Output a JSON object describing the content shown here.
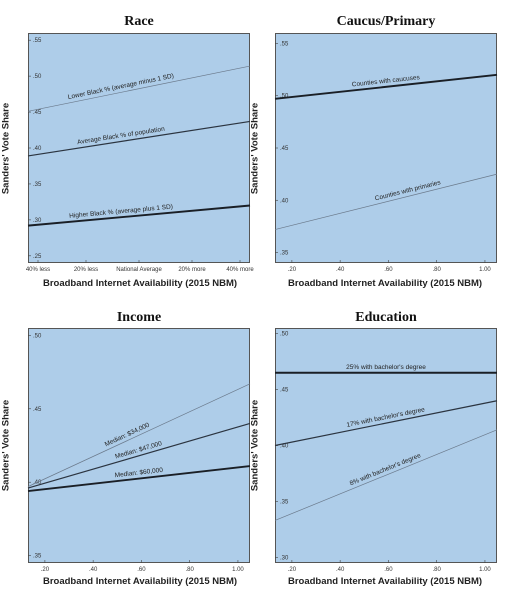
{
  "chart_data": [
    {
      "type": "line",
      "title": "Race",
      "xlabel": "Broadband Internet Availability (2015 NBM)",
      "ylabel": "Sanders' Vote Share",
      "xlim": [
        0,
        4
      ],
      "ylim": [
        0.24,
        0.56
      ],
      "x_ticks": [
        "40% less",
        "20% less",
        "National Average",
        "20% more",
        "40% more"
      ],
      "y_ticks": [
        ".25",
        ".30",
        ".35",
        ".40",
        ".45",
        ".50",
        ".55"
      ],
      "y_tick_values": [
        0.25,
        0.3,
        0.35,
        0.4,
        0.45,
        0.5,
        0.55
      ],
      "grid": false,
      "series": [
        {
          "name": "Lower Black % (average minus 1 SD)",
          "x": [
            0,
            4
          ],
          "y": [
            0.451,
            0.514
          ],
          "weight": "thin"
        },
        {
          "name": "Average Black % of population",
          "x": [
            0,
            4
          ],
          "y": [
            0.389,
            0.437
          ],
          "weight": "medium"
        },
        {
          "name": "Higher Black % (average plus 1 SD)",
          "x": [
            0,
            4
          ],
          "y": [
            0.292,
            0.32
          ],
          "weight": "thick"
        }
      ]
    },
    {
      "type": "line",
      "title": "Caucus/Primary",
      "xlabel": "Broadband Internet Availability (2015 NBM)",
      "ylabel": "Sanders' Vote Share",
      "xlim": [
        0.13,
        1.05
      ],
      "ylim": [
        0.34,
        0.56
      ],
      "x_ticks": [
        ".20",
        ".40",
        ".60",
        ".80",
        "1.00"
      ],
      "x_tick_values": [
        0.2,
        0.4,
        0.6,
        0.8,
        1.0
      ],
      "y_ticks": [
        ".35",
        ".40",
        ".45",
        ".50",
        ".55"
      ],
      "y_tick_values": [
        0.35,
        0.4,
        0.45,
        0.5,
        0.55
      ],
      "grid": false,
      "series": [
        {
          "name": "Counties with caucuses",
          "x": [
            0.13,
            1.05
          ],
          "y": [
            0.497,
            0.52
          ],
          "weight": "thick"
        },
        {
          "name": "Counties with primaries",
          "x": [
            0.13,
            1.05
          ],
          "y": [
            0.372,
            0.425
          ],
          "weight": "thin"
        }
      ]
    },
    {
      "type": "line",
      "title": "Income",
      "xlabel": "Broadband Internet Availability (2015 NBM)",
      "ylabel": "Sanders' Vote Share",
      "xlim": [
        0.13,
        1.05
      ],
      "ylim": [
        0.345,
        0.505
      ],
      "x_ticks": [
        ".20",
        ".40",
        ".60",
        ".80",
        "1.00"
      ],
      "x_tick_values": [
        0.2,
        0.4,
        0.6,
        0.8,
        1.0
      ],
      "y_ticks": [
        ".35",
        ".40",
        ".45",
        ".50"
      ],
      "y_tick_values": [
        0.35,
        0.4,
        0.45,
        0.5
      ],
      "grid": false,
      "series": [
        {
          "name": "Median: $34,000",
          "x": [
            0.13,
            1.05
          ],
          "y": [
            0.397,
            0.467
          ],
          "weight": "thin"
        },
        {
          "name": "Median: $47,000",
          "x": [
            0.13,
            1.05
          ],
          "y": [
            0.396,
            0.44
          ],
          "weight": "medium"
        },
        {
          "name": "Median: $60,000",
          "x": [
            0.13,
            1.05
          ],
          "y": [
            0.394,
            0.411
          ],
          "weight": "thick"
        }
      ]
    },
    {
      "type": "line",
      "title": "Education",
      "xlabel": "Broadband Internet Availability (2015 NBM)",
      "ylabel": "Sanders' Vote Share",
      "xlim": [
        0.13,
        1.05
      ],
      "ylim": [
        0.295,
        0.505
      ],
      "x_ticks": [
        ".20",
        ".40",
        ".60",
        ".80",
        "1.00"
      ],
      "x_tick_values": [
        0.2,
        0.4,
        0.6,
        0.8,
        1.0
      ],
      "y_ticks": [
        ".30",
        ".35",
        ".40",
        ".45",
        ".50"
      ],
      "y_tick_values": [
        0.3,
        0.35,
        0.4,
        0.45,
        0.5
      ],
      "grid": false,
      "series": [
        {
          "name": "25% with bachelor's degree",
          "x": [
            0.13,
            1.05
          ],
          "y": [
            0.465,
            0.465
          ],
          "weight": "thick"
        },
        {
          "name": "17% with bachelor's degree",
          "x": [
            0.13,
            1.05
          ],
          "y": [
            0.4,
            0.44
          ],
          "weight": "medium"
        },
        {
          "name": "8% with bachelor's degree",
          "x": [
            0.13,
            1.05
          ],
          "y": [
            0.333,
            0.414
          ],
          "weight": "thin"
        }
      ]
    }
  ]
}
